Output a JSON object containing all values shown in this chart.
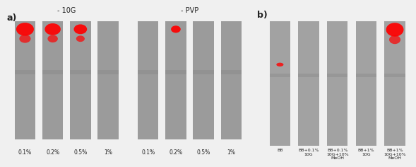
{
  "panel_a_title1": "- 10G",
  "panel_a_title2": "- PVP",
  "panel_b_label": "b)",
  "panel_a_label": "a)",
  "panel_a_xticks1": [
    "0.1%",
    "0.2%",
    "0.5%",
    "1%"
  ],
  "panel_a_xticks2": [
    "0.1%",
    "0.2%",
    "0.5%",
    "1%"
  ],
  "panel_b_xticks": [
    "BB",
    "BB+0.1%\n10G",
    "BB+0.1%\n10G+10%\nMeOH",
    "BB+1%\n10G",
    "BB+1%\n10G+10%\nMeOH"
  ],
  "bg_color": "#1a1a1a",
  "lane_color_dark": "#2a2a2a",
  "lane_color_light": "#888888",
  "red_color": "#ff0000",
  "text_color": "#333333",
  "figure_bg": "#f0f0f0"
}
